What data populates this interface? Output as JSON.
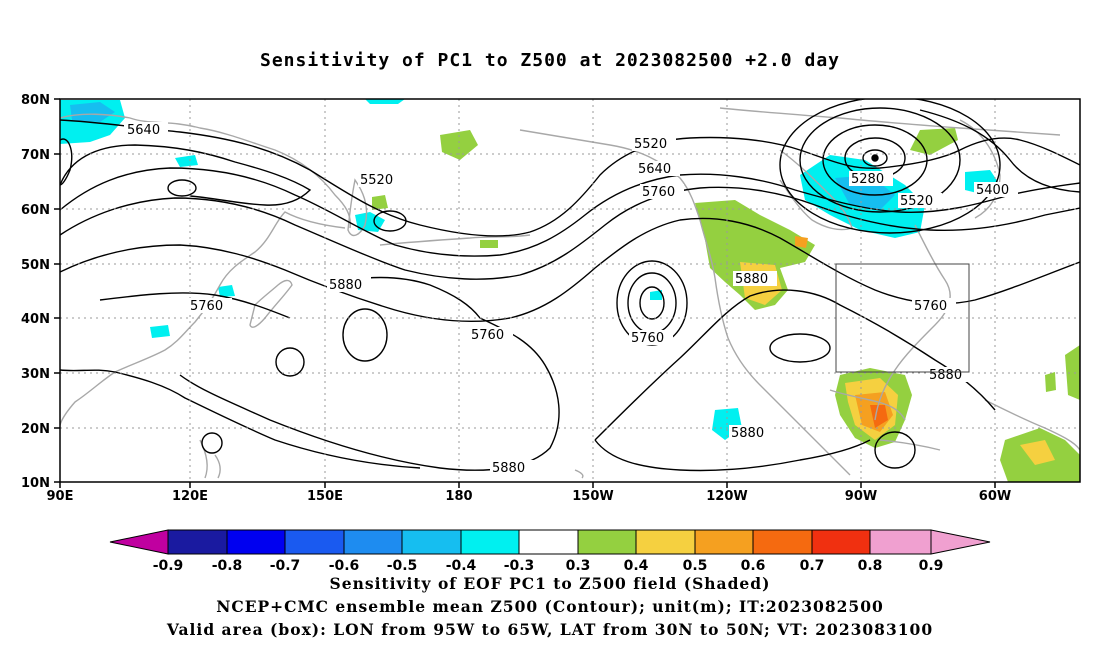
{
  "title": "Sensitivity of PC1 to Z500 at 2023082500 +2.0 day",
  "lat_labels": [
    "80N",
    "70N",
    "60N",
    "50N",
    "40N",
    "30N",
    "20N",
    "10N"
  ],
  "lon_labels": [
    "90E",
    "120E",
    "150E",
    "180",
    "150W",
    "120W",
    "90W",
    "60W"
  ],
  "colorbar": {
    "labels": [
      "-0.9",
      "-0.8",
      "-0.7",
      "-0.6",
      "-0.5",
      "-0.4",
      "-0.3",
      "0.3",
      "0.4",
      "0.5",
      "0.6",
      "0.7",
      "0.8",
      "0.9"
    ],
    "colors": [
      "#c000a0",
      "#1a1aa0",
      "#0000f0",
      "#1a5af0",
      "#1e8cf0",
      "#16bef0",
      "#00f0f0",
      "#ffffff",
      "#94d040",
      "#f5d040",
      "#f5a020",
      "#f56a10",
      "#f03010",
      "#f0a0d0"
    ]
  },
  "contour_labels": {
    "c5640": "5640",
    "c5520a": "5520",
    "c5520b": "5520",
    "c5640b": "5640",
    "c5760a": "5760",
    "c5760b": "5760",
    "c5880a": "5880",
    "c5760c": "5760",
    "c5760d": "5760",
    "c5880b": "5880",
    "c5280": "5280",
    "c5520c": "5520",
    "c5400": "5400",
    "c5760e": "5760",
    "c5880c": "5880",
    "c5880d": "5880",
    "c5880e": "5880"
  },
  "footer": {
    "line1": "Sensitivity of EOF PC1 to Z500 field (Shaded)",
    "line2": "NCEP+CMC ensemble mean Z500 (Contour); unit(m); IT:2023082500",
    "line3": "Valid area (box): LON from 95W to 65W, LAT from 30N to 50N; VT: 2023083100"
  }
}
